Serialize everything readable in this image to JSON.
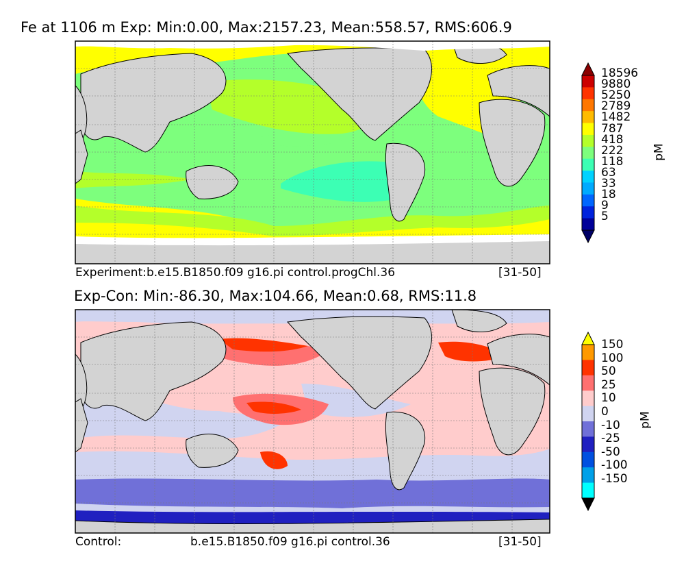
{
  "chart_data": [
    {
      "type": "map",
      "title": "Fe at 1106 m Exp: Min:0.00, Max:2157.23, Mean:558.57, RMS:606.9",
      "footer_left": "Experiment:b.e15.B1850.f09 g16.pi control.progChl.36",
      "footer_right": "[31-50]",
      "colorbar": {
        "unit": "pM",
        "levels": [
          "18596",
          "9880",
          "5250",
          "2789",
          "1482",
          "787",
          "418",
          "222",
          "118",
          "63",
          "33",
          "18",
          "9",
          "5"
        ],
        "colors": [
          "#8b0000",
          "#cc0000",
          "#ff3300",
          "#ff7700",
          "#ffbb00",
          "#ffff00",
          "#b4ff2a",
          "#7dff7d",
          "#3cffb4",
          "#00d2ff",
          "#00aaff",
          "#0066ff",
          "#0022dd",
          "#000099",
          "#000066"
        ]
      }
    },
    {
      "type": "map",
      "title": "Exp-Con: Min:-86.30, Max:104.66, Mean:0.68, RMS:11.8",
      "footer_left": "Control:",
      "footer_mid": "b.e15.B1850.f09 g16.pi control.36",
      "footer_right": "[31-50]",
      "colorbar": {
        "unit": "pM",
        "levels": [
          "150",
          "100",
          "50",
          "25",
          "10",
          "0",
          "-10",
          "-25",
          "-50",
          "-100",
          "-150"
        ],
        "colors": [
          "#ffff00",
          "#ff9900",
          "#ff3300",
          "#ff7070",
          "#ffcccc",
          "#d0d4f0",
          "#7070d8",
          "#2020c0",
          "#0050e0",
          "#00a0e8",
          "#00ffff",
          "#000000"
        ]
      }
    }
  ]
}
